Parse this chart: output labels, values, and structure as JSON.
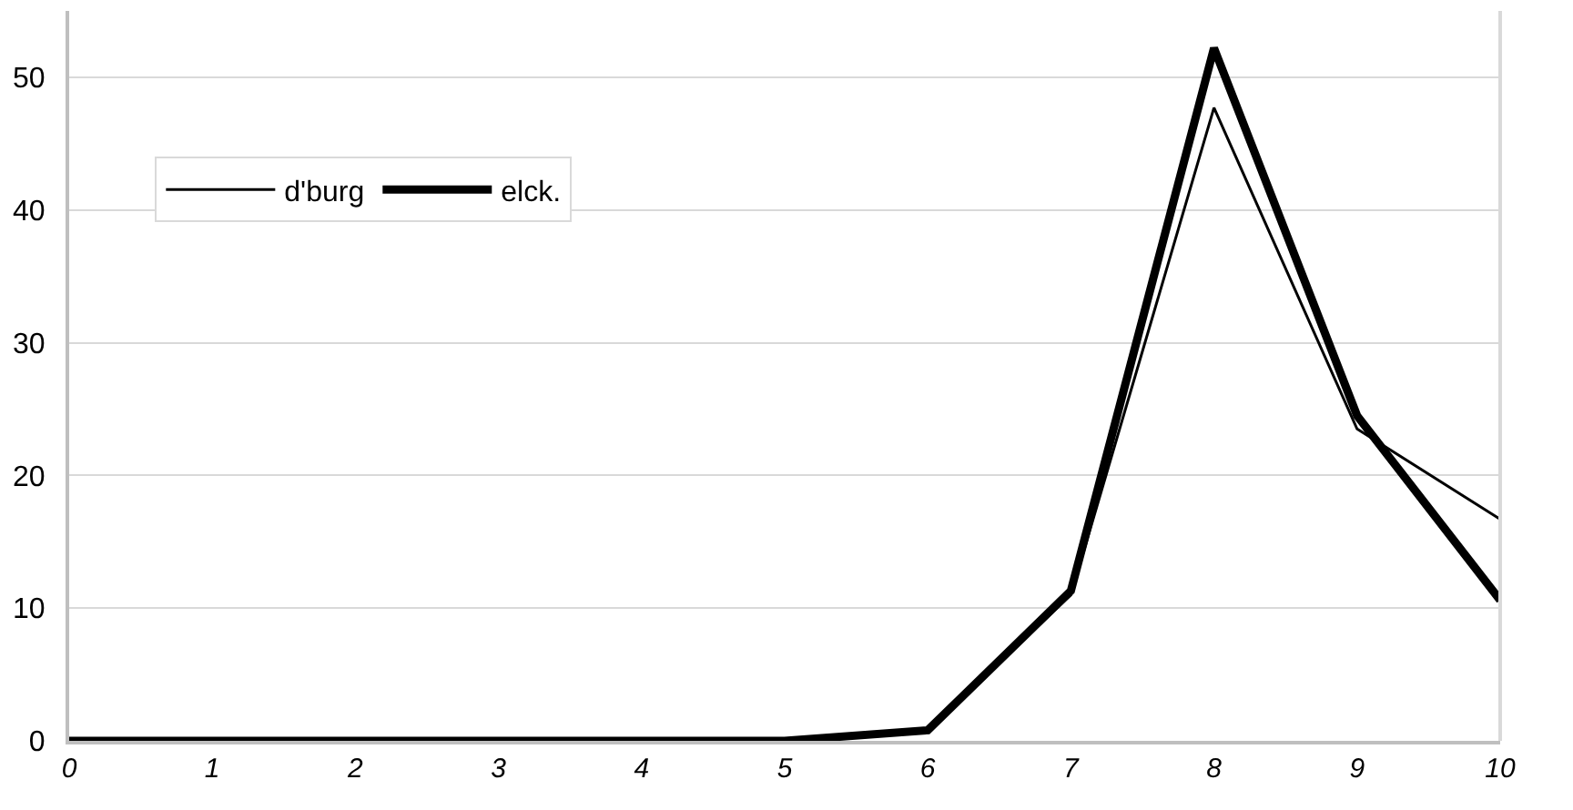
{
  "chart_data": {
    "type": "line",
    "x": [
      0,
      1,
      2,
      3,
      4,
      5,
      6,
      7,
      8,
      9,
      10
    ],
    "series": [
      {
        "name": "d'burg",
        "color": "#000000",
        "values": [
          0,
          0,
          0,
          0,
          0,
          0,
          0.8,
          11.0,
          47.7,
          23.5,
          16.7
        ]
      },
      {
        "name": "elck.",
        "color": "#000000",
        "values": [
          0,
          0,
          0,
          0,
          0,
          0,
          0.8,
          11.3,
          52.2,
          24.5,
          10.6
        ]
      }
    ],
    "xlim": [
      0,
      10
    ],
    "xticks": [
      0,
      1,
      2,
      3,
      4,
      5,
      6,
      7,
      8,
      9,
      10
    ],
    "ylim": [
      0,
      55
    ],
    "yticks": [
      0,
      10,
      20,
      30,
      40,
      50
    ],
    "grid": "y",
    "legend": "top left",
    "marker": "none",
    "line_style": "solid"
  }
}
